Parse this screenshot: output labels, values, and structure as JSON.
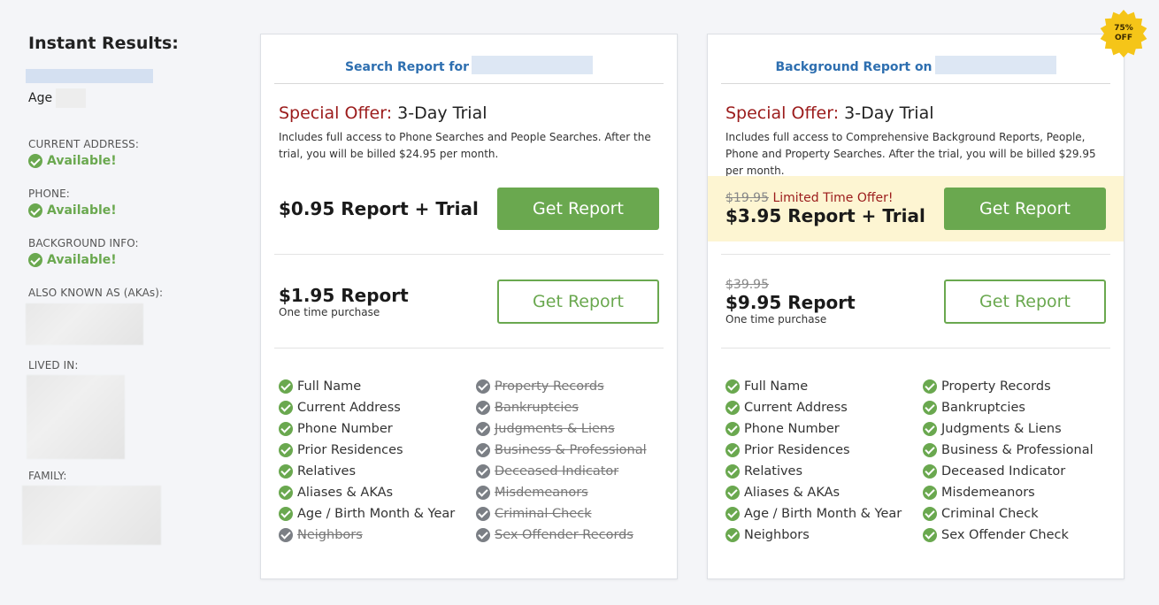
{
  "sidebar": {
    "title": "Instant Results:",
    "age_label": "Age",
    "current_address": {
      "label": "CURRENT ADDRESS:",
      "status": "Available!"
    },
    "phone": {
      "label": "PHONE:",
      "status": "Available!"
    },
    "background": {
      "label": "BACKGROUND INFO:",
      "status": "Available!"
    },
    "akas_label": "ALSO KNOWN AS (AKAs):",
    "lived_in_label": "LIVED IN:",
    "family_label": "FAMILY:"
  },
  "badge": {
    "line1": "75%",
    "line2": "OFF",
    "color": "#f5c518"
  },
  "colors": {
    "accent_green": "#6aa84f",
    "offer_red": "#9b1b1b",
    "link_blue": "#2e6fb0",
    "highlight": "#fdf5d2"
  },
  "cards": [
    {
      "header": "Search Report for",
      "offer_prefix": "Special Offer:",
      "offer_title": "3-Day Trial",
      "description": "Includes full access to Phone Searches and People Searches. After the trial, you will be billed $24.95 per month.",
      "trial_price": "$0.95 Report + Trial",
      "trial_button": "Get Report",
      "one_time_price": "$1.95 Report",
      "one_time_sub": "One time purchase",
      "one_time_button": "Get Report",
      "features": [
        {
          "label": "Full Name",
          "included": true
        },
        {
          "label": "Property Records",
          "included": false
        },
        {
          "label": "Current Address",
          "included": true
        },
        {
          "label": "Bankruptcies",
          "included": false
        },
        {
          "label": "Phone Number",
          "included": true
        },
        {
          "label": "Judgments & Liens",
          "included": false
        },
        {
          "label": "Prior Residences",
          "included": true
        },
        {
          "label": "Business & Professional",
          "included": false
        },
        {
          "label": "Relatives",
          "included": true
        },
        {
          "label": "Deceased Indicator",
          "included": false
        },
        {
          "label": "Aliases & AKAs",
          "included": true
        },
        {
          "label": "Misdemeanors",
          "included": false
        },
        {
          "label": "Age / Birth Month & Year",
          "included": true
        },
        {
          "label": "Criminal Check",
          "included": false
        },
        {
          "label": "Neighbors",
          "included": false
        },
        {
          "label": "Sex Offender Records",
          "included": false
        }
      ]
    },
    {
      "header": "Background Report on",
      "offer_prefix": "Special Offer:",
      "offer_title": "3-Day Trial",
      "description": "Includes full access to Comprehensive Background Reports, People, Phone and Property Searches. After the trial, you will be billed $29.95 per month.",
      "trial_old_price": "$19.95",
      "trial_limited": "Limited Time Offer!",
      "trial_price": "$3.95 Report + Trial",
      "trial_button": "Get Report",
      "one_time_old_price": "$39.95",
      "one_time_price": "$9.95 Report",
      "one_time_sub": "One time purchase",
      "one_time_button": "Get Report",
      "features": [
        {
          "label": "Full Name",
          "included": true
        },
        {
          "label": "Property Records",
          "included": true
        },
        {
          "label": "Current Address",
          "included": true
        },
        {
          "label": "Bankruptcies",
          "included": true
        },
        {
          "label": "Phone Number",
          "included": true
        },
        {
          "label": "Judgments & Liens",
          "included": true
        },
        {
          "label": "Prior Residences",
          "included": true
        },
        {
          "label": "Business & Professional",
          "included": true
        },
        {
          "label": "Relatives",
          "included": true
        },
        {
          "label": "Deceased Indicator",
          "included": true
        },
        {
          "label": "Aliases & AKAs",
          "included": true
        },
        {
          "label": "Misdemeanors",
          "included": true
        },
        {
          "label": "Age / Birth Month & Year",
          "included": true
        },
        {
          "label": "Criminal Check",
          "included": true
        },
        {
          "label": "Neighbors",
          "included": true
        },
        {
          "label": "Sex Offender Check",
          "included": true
        }
      ]
    }
  ]
}
